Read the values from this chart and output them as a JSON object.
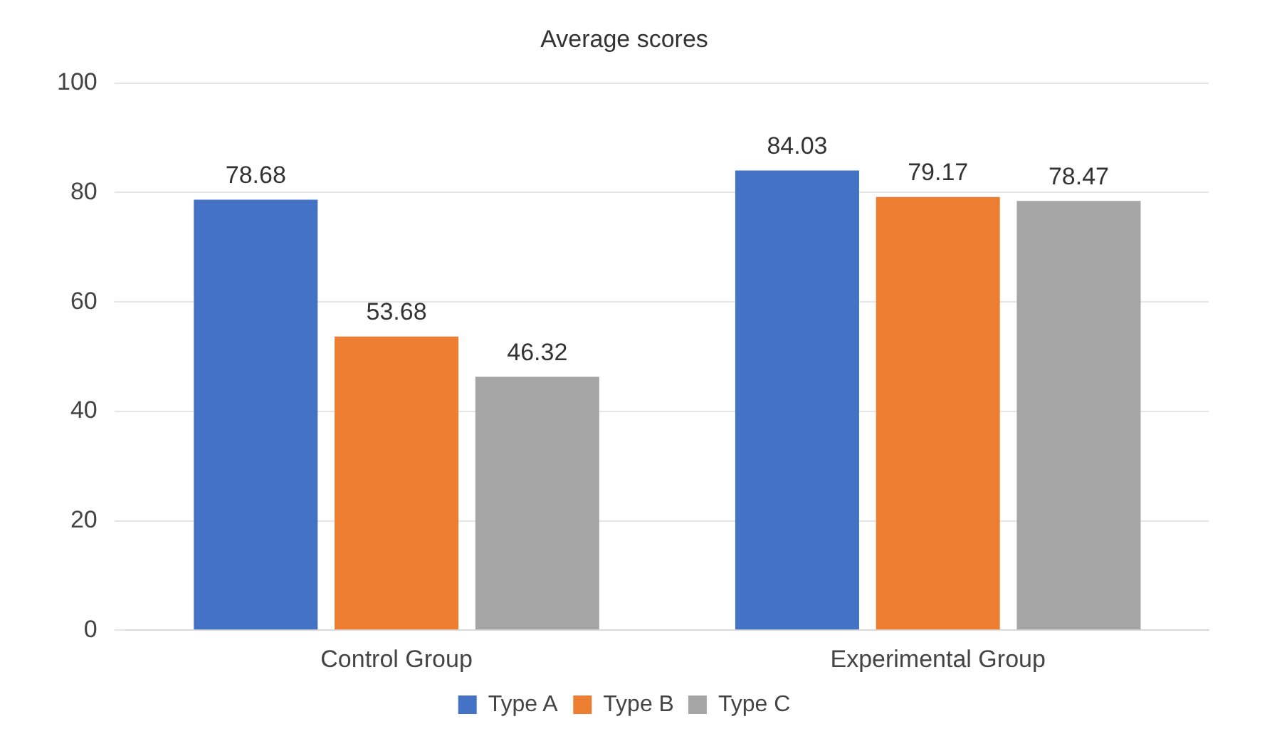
{
  "chart_data": {
    "type": "bar",
    "title": "Average scores",
    "categories": [
      "Control Group",
      "Experimental Group"
    ],
    "series": [
      {
        "name": "Type A",
        "color": "#4472c4",
        "values": [
          78.68,
          84.03
        ]
      },
      {
        "name": "Type B",
        "color": "#ed7d31",
        "values": [
          53.68,
          79.17
        ]
      },
      {
        "name": "Type C",
        "color": "#a5a5a5",
        "values": [
          46.32,
          78.47
        ]
      }
    ],
    "ylim": [
      0,
      100
    ],
    "yticks": [
      0,
      20,
      40,
      60,
      80,
      100
    ],
    "grid": "y",
    "legend": "bottom",
    "data_labels": true
  }
}
